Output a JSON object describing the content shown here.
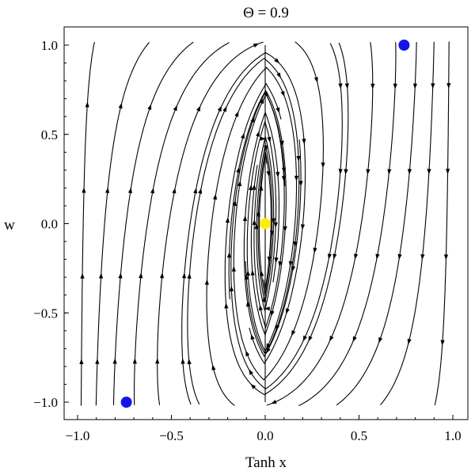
{
  "chart_data": {
    "type": "streamplot",
    "title": "Θ = 0.9",
    "xlabel": "Tanh x",
    "ylabel": "w",
    "xlim": [
      -1.0,
      1.0
    ],
    "ylim": [
      -1.0,
      1.0
    ],
    "xticks": [
      "−1.0",
      "−0.5",
      "0.0",
      "0.5",
      "1.0"
    ],
    "yticks": [
      "1.0",
      "0.5",
      "0.0",
      "−0.5",
      "−1.0"
    ],
    "grid": false,
    "points": [
      {
        "x": 0.74,
        "y": 1.0,
        "color": "#1414e6"
      },
      {
        "x": -0.74,
        "y": -1.0,
        "color": "#1414e6"
      },
      {
        "x": 0.0,
        "y": 0.0,
        "color": "#ffee00"
      }
    ]
  }
}
